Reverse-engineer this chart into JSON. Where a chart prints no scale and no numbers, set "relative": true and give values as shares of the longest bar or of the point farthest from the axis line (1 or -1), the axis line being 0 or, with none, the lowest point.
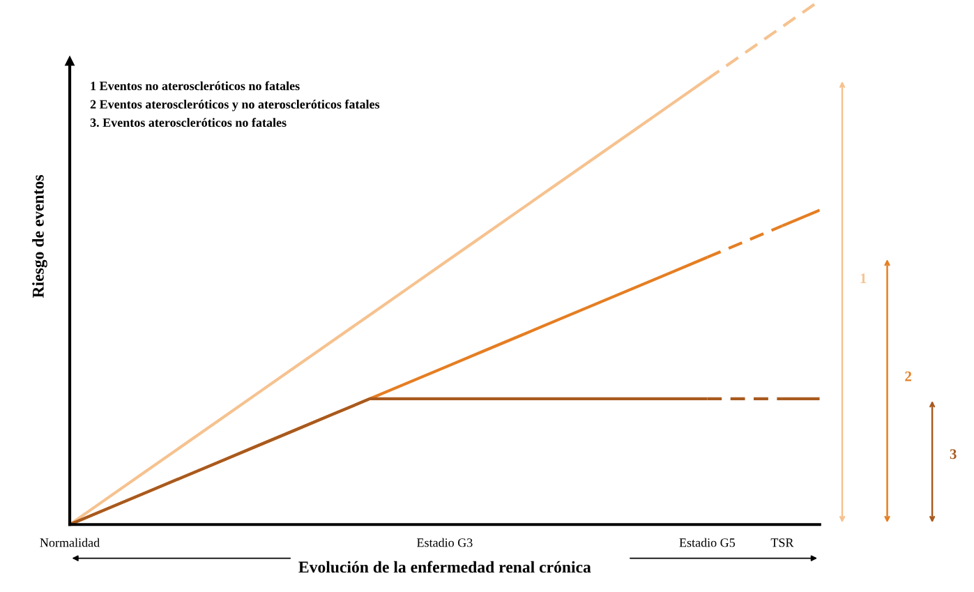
{
  "chart_data": {
    "type": "line",
    "relative": true,
    "xlabel": "Evolución de la enfermedad renal crónica",
    "ylabel": "Riesgo de eventos",
    "categories": [
      "Normalidad",
      null,
      null,
      null,
      null,
      null,
      null,
      null,
      null,
      null,
      "Estadio G3",
      null,
      null,
      null,
      null,
      null,
      null,
      "Estadio G5",
      null,
      "TSR",
      null
    ],
    "annotations": [
      "1 Eventos no ateroscleróticos no fatales",
      "2 Eventos ateroscleróticos y no ateroscleróticos fatales",
      "3. Eventos ateroscleróticos no fatales"
    ],
    "grid": false,
    "legend": false,
    "series": [
      {
        "name": "1",
        "color": "#f6c28f",
        "line_style": "solid",
        "values": [
          0,
          0.05,
          0.1,
          0.15,
          0.2,
          0.25,
          0.3,
          0.35,
          0.4,
          0.45,
          0.5,
          0.55,
          0.6,
          0.65,
          0.7,
          0.75,
          0.8,
          0.85,
          null,
          null,
          null
        ]
      },
      {
        "color": "#f6c28f",
        "line_style": "dashed",
        "values": [
          null,
          null,
          null,
          null,
          null,
          null,
          null,
          null,
          null,
          null,
          null,
          null,
          null,
          null,
          null,
          null,
          null,
          0.85,
          0.9,
          0.95,
          1
        ]
      },
      {
        "name": "2",
        "color": "#e57e22",
        "line_style": "solid",
        "values": [
          0,
          0.03,
          0.06,
          0.09,
          0.12,
          0.15,
          0.18,
          0.21,
          0.24,
          0.27,
          0.3,
          0.33,
          0.36,
          0.39,
          0.42,
          0.45,
          0.48,
          0.51,
          null,
          null,
          null
        ]
      },
      {
        "color": "#e57e22",
        "line_style": "dashed",
        "values": [
          null,
          null,
          null,
          null,
          null,
          null,
          null,
          null,
          null,
          null,
          null,
          null,
          null,
          null,
          null,
          null,
          null,
          0.51,
          0.54,
          0.57,
          null
        ]
      },
      {
        "color": "#e57e22",
        "line_style": "solid",
        "values": [
          null,
          null,
          null,
          null,
          null,
          null,
          null,
          null,
          null,
          null,
          null,
          null,
          null,
          null,
          null,
          null,
          null,
          null,
          null,
          0.57,
          0.6
        ]
      },
      {
        "name": "3",
        "color": "#a85a1f",
        "line_style": "solid",
        "values": [
          0,
          0.03,
          0.06,
          0.09,
          0.12,
          0.15,
          0.18,
          0.21,
          0.24,
          0.24,
          0.24,
          0.24,
          0.24,
          0.24,
          0.24,
          0.24,
          0.24,
          0.24,
          null,
          null,
          null
        ]
      },
      {
        "color": "#a85a1f",
        "line_style": "dashed",
        "values": [
          null,
          null,
          null,
          null,
          null,
          null,
          null,
          null,
          null,
          null,
          null,
          null,
          null,
          null,
          null,
          null,
          null,
          0.24,
          0.24,
          0.24,
          null
        ]
      },
      {
        "color": "#a85a1f",
        "line_style": "solid",
        "values": [
          null,
          null,
          null,
          null,
          null,
          null,
          null,
          null,
          null,
          null,
          null,
          null,
          null,
          null,
          null,
          null,
          null,
          null,
          null,
          0.24,
          0.24
        ]
      }
    ]
  }
}
